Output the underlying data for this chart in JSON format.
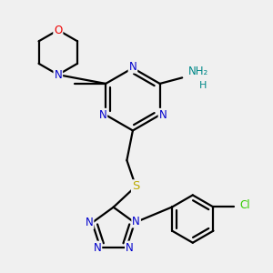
{
  "background_color": "#f0f0f0",
  "atom_colors": {
    "N": "#0000cc",
    "O": "#ee0000",
    "S": "#bbaa00",
    "C": "#000000",
    "Cl": "#33cc00",
    "NH2_H": "#008888",
    "NH2_N": "#008888"
  },
  "bond_color": "#000000",
  "bond_width": 1.6,
  "font_size": 8.5
}
